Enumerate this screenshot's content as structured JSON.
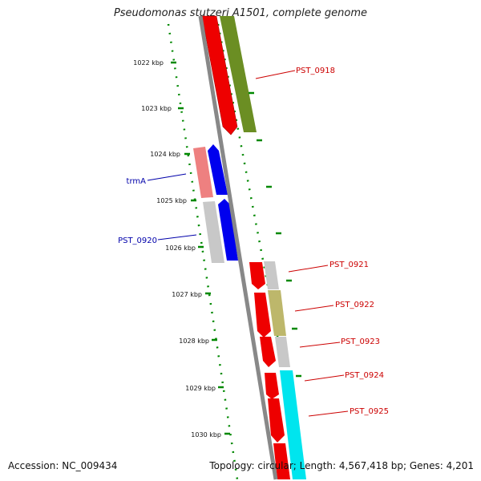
{
  "title": "Pseudomonas stutzeri A1501, complete genome",
  "footer": {
    "accession": "Accession: NC_009434",
    "stats": "Topology: circular; Length: 4,567,418 bp; Genes: 4,201"
  },
  "ruler_labels": [
    "1022 kbp",
    "1023 kbp",
    "1024 kbp",
    "1025 kbp",
    "1026 kbp",
    "1027 kbp",
    "1028 kbp",
    "1029 kbp",
    "1030 kbp"
  ],
  "gene_labels": [
    {
      "text": "PST_0918",
      "color": "#cc0000"
    },
    {
      "text": "trmA",
      "color": "#0000aa"
    },
    {
      "text": "PST_0920",
      "color": "#0000aa"
    },
    {
      "text": "PST_0921",
      "color": "#cc0000"
    },
    {
      "text": "PST_0922",
      "color": "#cc0000"
    },
    {
      "text": "PST_0923",
      "color": "#cc0000"
    },
    {
      "text": "PST_0924",
      "color": "#cc0000"
    },
    {
      "text": "PST_0925",
      "color": "#cc0000"
    }
  ],
  "colors": {
    "cds": "#ee0000",
    "cds_alt": "#0000ee",
    "trna": "#ee8080",
    "gray_track": "#c8c8c8",
    "olive_track": "#6b8e23",
    "khaki_track": "#bdb76b",
    "cyan_track": "#00e5ee",
    "backbone": "#808080",
    "ticks": "#007700"
  },
  "icons": [
    "forward-arrow-feature",
    "map-backbone"
  ]
}
